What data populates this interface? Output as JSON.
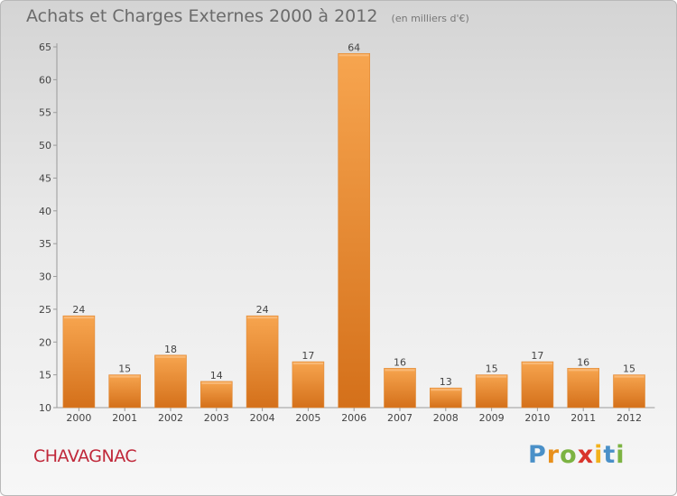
{
  "chart_data": {
    "type": "bar",
    "title": "Achats et Charges Externes 2000 à 2012",
    "subtitle": "(en milliers d'€)",
    "xlabel": "",
    "ylabel": "",
    "categories": [
      "2000",
      "2001",
      "2002",
      "2003",
      "2004",
      "2005",
      "2006",
      "2007",
      "2008",
      "2009",
      "2010",
      "2011",
      "2012"
    ],
    "values": [
      24,
      15,
      18,
      14,
      24,
      17,
      64,
      16,
      13,
      15,
      17,
      16,
      15
    ],
    "ylim": [
      10,
      65
    ],
    "yticks": [
      10,
      15,
      20,
      25,
      30,
      35,
      40,
      45,
      50,
      55,
      60,
      65
    ],
    "grid": false,
    "bar_color": "#f0922e",
    "bar_color_dark": "#d4701a"
  },
  "commune": "CHAVAGNAC",
  "brand": {
    "letters": [
      "P",
      "r",
      "o",
      "x",
      "i",
      "t",
      "i"
    ],
    "colors": [
      "#4a90c8",
      "#e8901c",
      "#7cb342",
      "#d9342b",
      "#f2b21b",
      "#4a90c8",
      "#7cb342"
    ]
  }
}
